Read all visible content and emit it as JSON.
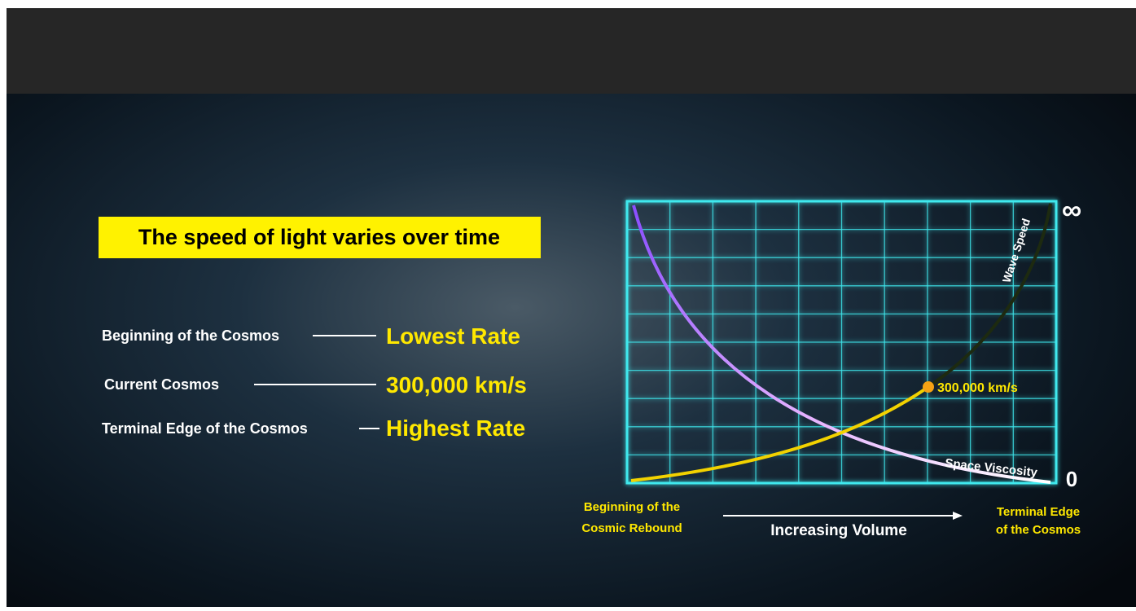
{
  "title": "The speed of light varies over time",
  "rows": [
    {
      "label": "Beginning of the Cosmos",
      "value": "Lowest Rate"
    },
    {
      "label": "Current Cosmos",
      "value": "300,000 km/s"
    },
    {
      "label": "Terminal Edge of the Cosmos",
      "value": "Highest Rate"
    }
  ],
  "diagram": {
    "top_label": "∞",
    "bottom_label": "0",
    "rising_curve": "Wave Speed",
    "falling_curve": "Space Viscosity",
    "point_label": "300,000 km/s",
    "x_start": [
      "Beginning of the",
      "Cosmic Rebound"
    ],
    "x_axis": "Increasing Volume",
    "x_end": [
      "Terminal Edge",
      "of the Cosmos"
    ]
  }
}
